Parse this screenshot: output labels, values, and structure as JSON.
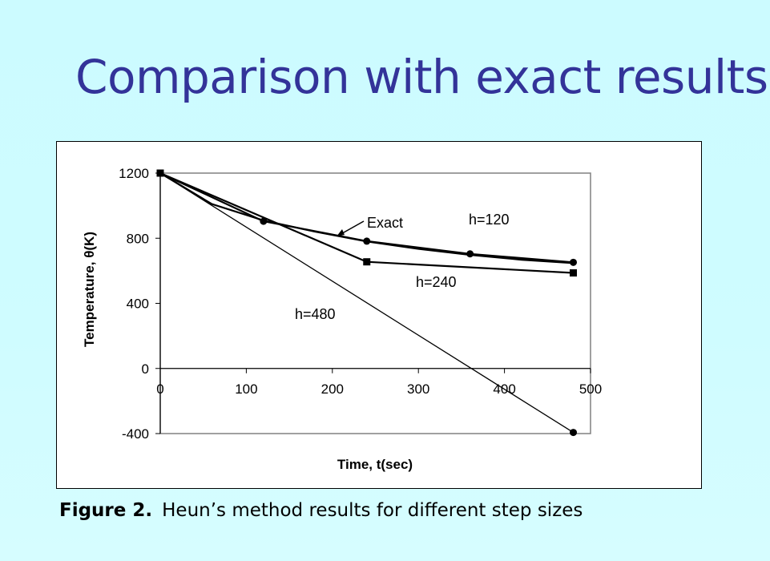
{
  "slide": {
    "title": "Comparison with exact results",
    "caption_label": "Figure 2.",
    "caption_text": "Heun’s method results for different step sizes"
  },
  "chart_data": {
    "type": "line",
    "xlabel": "Time, t(sec)",
    "ylabel": "Temperature, θ(K)",
    "xlim": [
      0,
      500
    ],
    "ylim": [
      -400,
      1200
    ],
    "x_ticks": [
      0,
      100,
      200,
      300,
      400,
      500
    ],
    "y_ticks": [
      1200,
      800,
      400,
      0,
      -400
    ],
    "grid": false,
    "series": [
      {
        "name": "Exact",
        "x": [
          0,
          60,
          120,
          180,
          240,
          300,
          360,
          420,
          480
        ],
        "y": [
          1200,
          1010,
          909,
          840,
          780,
          735,
          698,
          668,
          647
        ],
        "marker": "none"
      },
      {
        "name": "h=120",
        "x": [
          0,
          120,
          240,
          360,
          480
        ],
        "y": [
          1200,
          904,
          782,
          704,
          652
        ],
        "marker": "circle"
      },
      {
        "name": "h=240",
        "x": [
          0,
          240,
          480
        ],
        "y": [
          1200,
          655,
          587
        ],
        "marker": "square"
      },
      {
        "name": "h=480",
        "x": [
          0,
          480
        ],
        "y": [
          1200,
          -393
        ],
        "marker": "circle"
      }
    ],
    "annotations": [
      "Exact",
      "h=120",
      "h=240",
      "h=480"
    ]
  }
}
